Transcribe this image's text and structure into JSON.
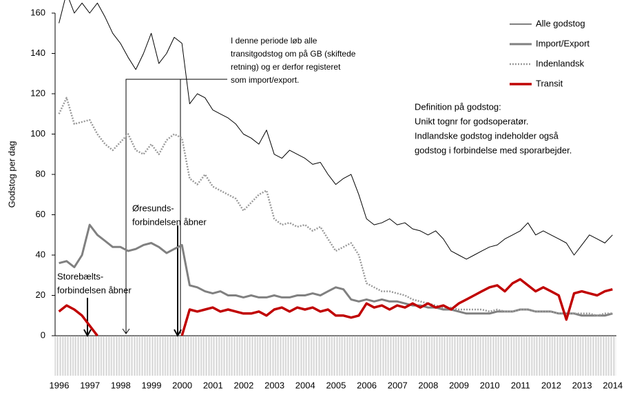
{
  "chart_data": {
    "type": "line",
    "ylabel": "Godstog per dag",
    "categories": [
      "1996",
      null,
      null,
      null,
      "1997",
      null,
      null,
      null,
      "1998",
      null,
      null,
      null,
      "1999",
      null,
      null,
      null,
      "2000",
      null,
      null,
      null,
      "2001",
      null,
      null,
      null,
      "2002",
      null,
      null,
      null,
      "2003",
      null,
      null,
      null,
      "2004",
      null,
      null,
      null,
      "2005",
      null,
      null,
      null,
      "2006",
      null,
      null,
      null,
      "2007",
      null,
      null,
      null,
      "2008",
      null,
      null,
      null,
      "2009",
      null,
      null,
      null,
      "2010",
      null,
      null,
      null,
      "2011",
      null,
      null,
      null,
      "2012",
      null,
      null,
      null,
      "2013",
      null,
      null,
      null,
      "2014"
    ],
    "series": [
      {
        "name": "Alle godstog",
        "color": "#000000",
        "width": 1,
        "style": "solid",
        "values": [
          155,
          170,
          160,
          165,
          160,
          165,
          158,
          150,
          145,
          138,
          132,
          140,
          150,
          135,
          140,
          148,
          145,
          115,
          120,
          118,
          112,
          110,
          108,
          105,
          100,
          98,
          95,
          102,
          90,
          88,
          92,
          90,
          88,
          85,
          86,
          80,
          75,
          78,
          80,
          70,
          58,
          55,
          56,
          58,
          55,
          56,
          53,
          52,
          50,
          52,
          48,
          42,
          40,
          38,
          40,
          42,
          44,
          45,
          48,
          50,
          52,
          56,
          50,
          52,
          50,
          48,
          46,
          40,
          45,
          50,
          48,
          46,
          50
        ]
      },
      {
        "name": "Import/Export",
        "color": "#808080",
        "width": 3,
        "style": "solid",
        "values": [
          36,
          37,
          34,
          40,
          55,
          50,
          47,
          44,
          44,
          42,
          43,
          45,
          46,
          44,
          41,
          43,
          45,
          25,
          24,
          22,
          21,
          22,
          20,
          20,
          19,
          20,
          19,
          19,
          20,
          19,
          19,
          20,
          20,
          21,
          20,
          22,
          24,
          23,
          18,
          17,
          18,
          17,
          18,
          17,
          17,
          16,
          15,
          15,
          14,
          14,
          13,
          13,
          12,
          11,
          11,
          11,
          11,
          12,
          12,
          12,
          13,
          13,
          12,
          12,
          12,
          11,
          11,
          11,
          10,
          10,
          10,
          10,
          11
        ]
      },
      {
        "name": "Indenlandsk",
        "color": "#999999",
        "width": 2.5,
        "style": "dotted",
        "values": [
          110,
          118,
          105,
          106,
          107,
          100,
          95,
          92,
          96,
          100,
          92,
          90,
          95,
          90,
          97,
          100,
          98,
          78,
          75,
          80,
          74,
          72,
          70,
          68,
          62,
          66,
          70,
          72,
          58,
          55,
          56,
          54,
          55,
          52,
          54,
          48,
          42,
          44,
          46,
          40,
          26,
          24,
          22,
          22,
          21,
          20,
          18,
          17,
          16,
          15,
          14,
          14,
          13,
          13,
          13,
          13,
          12,
          13,
          12,
          12,
          13,
          13,
          12,
          12,
          12,
          11,
          11,
          11,
          11,
          11,
          10,
          11,
          11
        ]
      },
      {
        "name": "Transit",
        "color": "#c00000",
        "width": 3.5,
        "style": "solid",
        "values": [
          12,
          15,
          13,
          10,
          5,
          0,
          null,
          null,
          null,
          null,
          null,
          null,
          0,
          null,
          null,
          null,
          0,
          13,
          12,
          13,
          14,
          12,
          13,
          12,
          11,
          11,
          12,
          10,
          13,
          14,
          12,
          14,
          13,
          14,
          12,
          13,
          10,
          10,
          9,
          10,
          16,
          14,
          15,
          13,
          15,
          14,
          16,
          14,
          16,
          14,
          15,
          13,
          16,
          18,
          20,
          22,
          24,
          25,
          22,
          26,
          28,
          25,
          22,
          24,
          22,
          20,
          8,
          21,
          22,
          21,
          20,
          22,
          23
        ]
      }
    ],
    "ylim": [
      0,
      160
    ],
    "yticks": [
      0,
      20,
      40,
      60,
      80,
      100,
      120,
      140,
      160
    ],
    "legend": "upper right",
    "annotations": {
      "gb": [
        "I denne periode løb alle",
        "transitgodstog om på GB (skiftede",
        "retning) og er derfor registeret",
        "som import/export."
      ],
      "definition": [
        "Definition på godstog:",
        "Unikt tognr for godsoperatør.",
        "Indlandske godstog indeholder også",
        "godstog i forbindelse med sporarbejder."
      ],
      "oresund": [
        "Øresunds-",
        "forbindelsen åbner"
      ],
      "storebaelt": [
        "Storebælts-",
        "forbindelsen åbner"
      ]
    }
  }
}
